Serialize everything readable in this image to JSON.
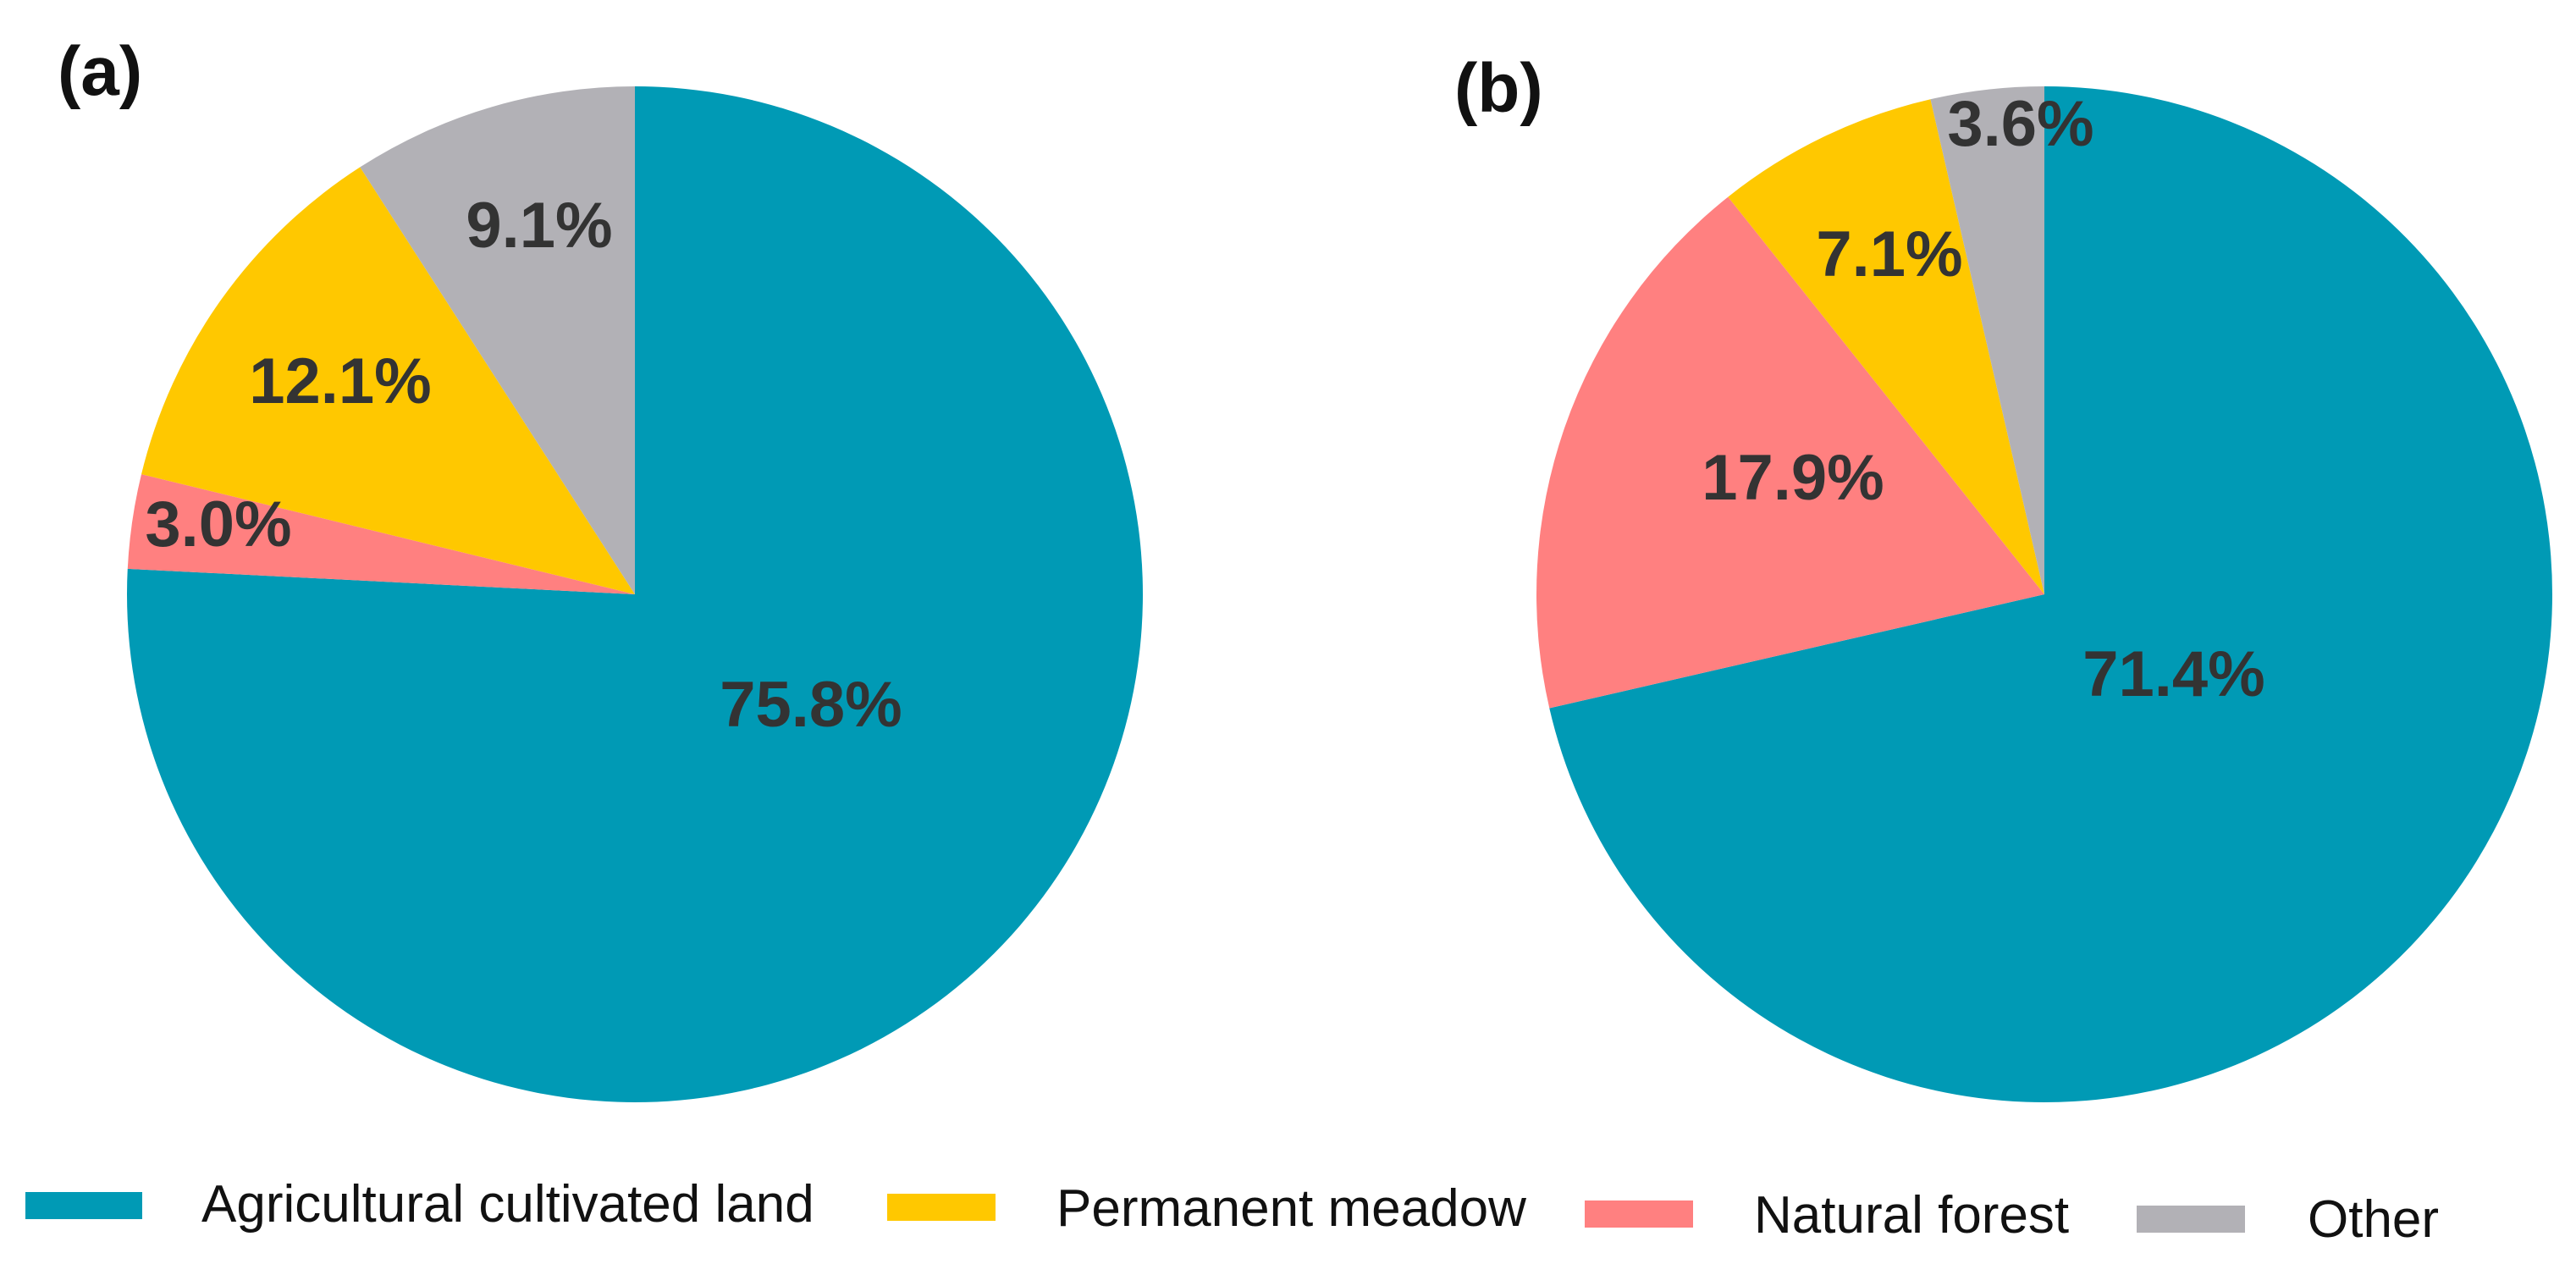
{
  "chart_data": [
    {
      "type": "pie",
      "panel_label": "(a)",
      "start": "top",
      "direction": "clockwise",
      "slices": [
        {
          "name": "Agricultural cultivated land",
          "value": 75.8,
          "label": "75.8%",
          "color": "#009AB5"
        },
        {
          "name": "Natural forest",
          "value": 3.0,
          "label": "3.0%",
          "color": "#FF8080"
        },
        {
          "name": "Permanent meadow",
          "value": 12.1,
          "label": "12.1%",
          "color": "#FFC800"
        },
        {
          "name": "Other",
          "value": 9.1,
          "label": "9.1%",
          "color": "#B2B1B6"
        }
      ]
    },
    {
      "type": "pie",
      "panel_label": "(b)",
      "start": "top",
      "direction": "clockwise",
      "slices": [
        {
          "name": "Agricultural cultivated land",
          "value": 71.4,
          "label": "71.4%",
          "color": "#009AB5"
        },
        {
          "name": "Natural forest",
          "value": 17.9,
          "label": "17.9%",
          "color": "#FF8080"
        },
        {
          "name": "Permanent meadow",
          "value": 7.1,
          "label": "7.1%",
          "color": "#FFC800"
        },
        {
          "name": "Other",
          "value": 3.6,
          "label": "3.6%",
          "color": "#B2B1B6"
        }
      ]
    }
  ],
  "legend": {
    "placement": "bottom",
    "items": [
      {
        "label": "Agricultural cultivated land",
        "color": "#009AB5"
      },
      {
        "label": "Permanent meadow",
        "color": "#FFC800"
      },
      {
        "label": "Natural forest",
        "color": "#FF8080"
      },
      {
        "label": "Other",
        "color": "#B2B1B6"
      }
    ]
  }
}
